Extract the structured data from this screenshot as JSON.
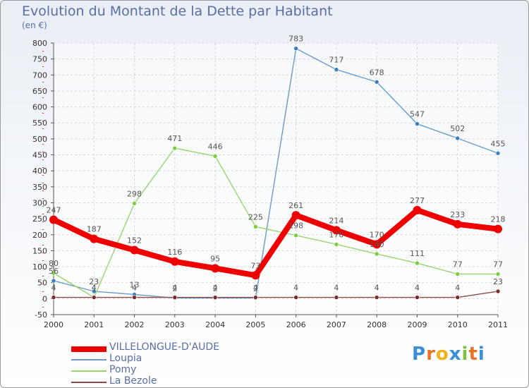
{
  "title": "Evolution du Montant de la Dette par Habitant",
  "unit": "(en €)",
  "brand": "Proxiti",
  "chart_data": {
    "type": "line",
    "title": "Evolution du Montant de la Dette par Habitant",
    "ylabel": "(en €)",
    "ylim": [
      -50,
      800
    ],
    "yticks": [
      -50,
      0,
      50,
      100,
      150,
      200,
      250,
      300,
      350,
      400,
      450,
      500,
      550,
      600,
      650,
      700,
      750,
      800
    ],
    "categories": [
      "2000",
      "2001",
      "2002",
      "2003",
      "2004",
      "2005",
      "2006",
      "2007",
      "2008",
      "2009",
      "2010",
      "2011"
    ],
    "grid": true,
    "legend_position": "bottom-left",
    "series": [
      {
        "name": "Loupia",
        "color": "#6a9acb",
        "marker": "#3a7cc0",
        "values": [
          56,
          23,
          13,
          2,
          2,
          2,
          783,
          717,
          678,
          547,
          502,
          455
        ]
      },
      {
        "name": "Pomy",
        "color": "#99d470",
        "marker": "#7ccd3c",
        "values": [
          80,
          4,
          298,
          471,
          446,
          225,
          198,
          170,
          140,
          111,
          77,
          77
        ]
      },
      {
        "name": "La Bezole",
        "color": "#8b4a4a",
        "marker": "#7a2b2b",
        "values": [
          4,
          4,
          4,
          4,
          4,
          4,
          4,
          4,
          4,
          4,
          4,
          23
        ]
      },
      {
        "name": "VILLELONGUE-D'AUDE",
        "color": "#ee0000",
        "marker": "#ee0000",
        "values": [
          247,
          187,
          152,
          116,
          95,
          73,
          261,
          214,
          170,
          277,
          233,
          218
        ]
      }
    ],
    "data_labels": [
      {
        "series": "Loupia",
        "labels": [
          "56",
          "23",
          "13",
          "2",
          "2",
          "2",
          "783",
          "717",
          "678",
          "547",
          "502",
          "455"
        ]
      },
      {
        "series": "Pomy",
        "labels": [
          "80",
          "4",
          "298",
          "471",
          "446",
          "225",
          "198",
          "170",
          "140",
          "111",
          "77",
          "77"
        ]
      },
      {
        "series": "La Bezole",
        "labels": [
          "4",
          "4",
          "4",
          "4",
          "4",
          "4",
          "4",
          "4",
          "4",
          "4",
          "4",
          "23"
        ]
      },
      {
        "series": "VILLELONGUE-D'AUDE",
        "labels": [
          "247",
          "187",
          "152",
          "116",
          "95",
          "73",
          "261",
          "214",
          "170",
          "277",
          "233",
          "218"
        ]
      }
    ],
    "legend": [
      "VILLELONGUE-D'AUDE",
      "Loupia",
      "Pomy",
      "La Bezole"
    ]
  }
}
